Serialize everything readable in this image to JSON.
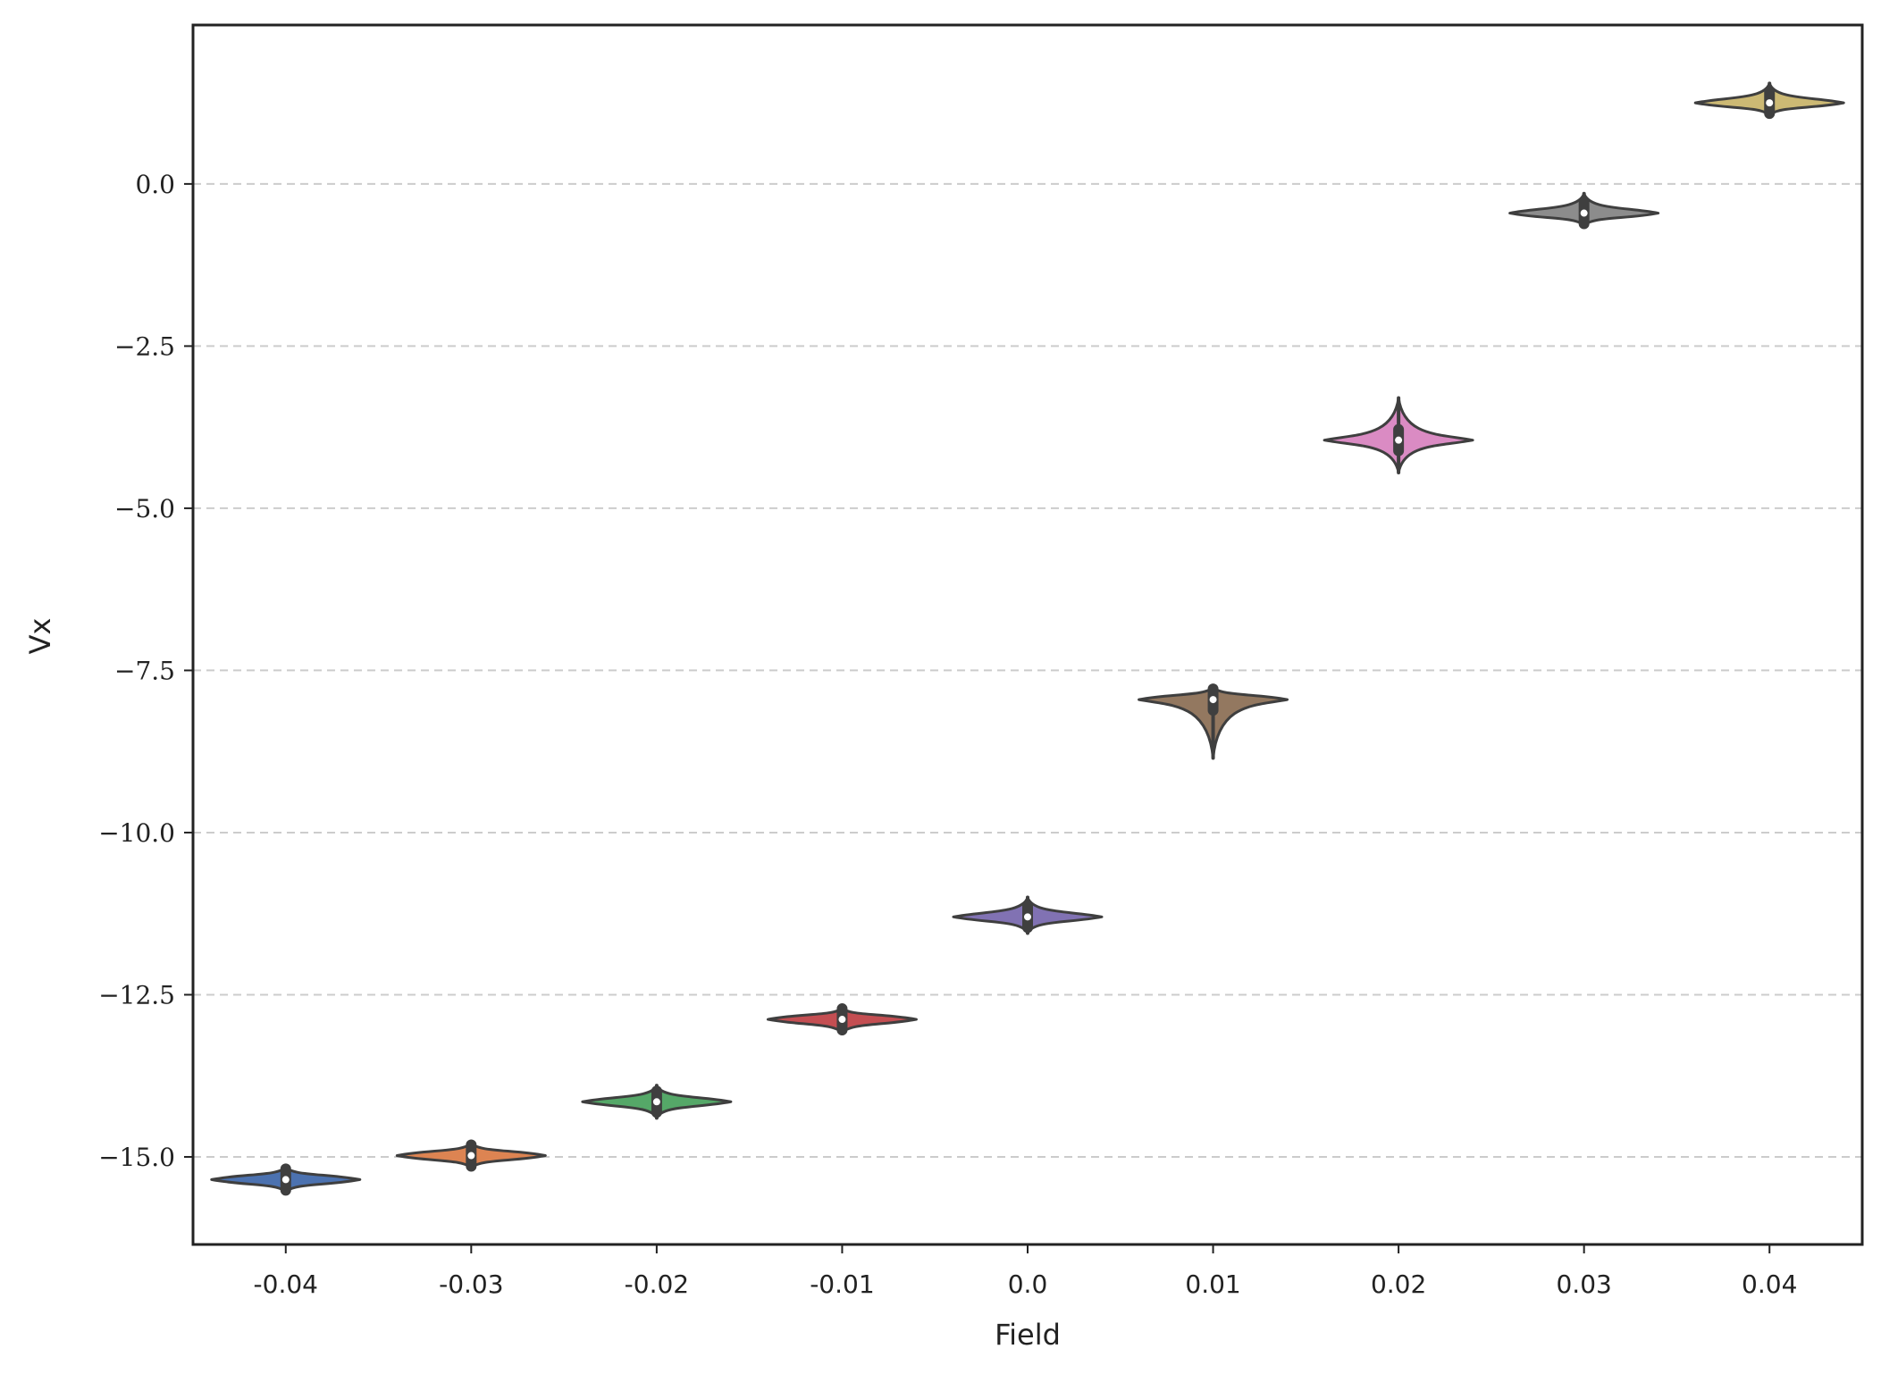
{
  "chart_data": {
    "type": "violin",
    "title": "",
    "xlabel": "Field",
    "ylabel": "Vx",
    "categories": [
      "-0.04",
      "-0.03",
      "-0.02",
      "-0.01",
      "0.0",
      "0.01",
      "0.02",
      "0.03",
      "0.04"
    ],
    "y_ticks": [
      {
        "value": 0.0,
        "label": "0.0"
      },
      {
        "value": -2.5,
        "label": "−2.5"
      },
      {
        "value": -5.0,
        "label": "−5.0"
      },
      {
        "value": -7.5,
        "label": "−7.5"
      },
      {
        "value": -10.0,
        "label": "−10.0"
      },
      {
        "value": -12.5,
        "label": "−12.5"
      },
      {
        "value": -15.0,
        "label": "−15.0"
      }
    ],
    "ylim": [
      -16.35,
      2.45
    ],
    "grid": {
      "y": true,
      "x": false,
      "style": "dashed"
    },
    "series": [
      {
        "category": "-0.04",
        "median": -15.35,
        "min": -15.55,
        "max": -15.15,
        "color": "#4c72b0"
      },
      {
        "category": "-0.03",
        "median": -14.98,
        "min": -15.18,
        "max": -14.78,
        "color": "#dd8452"
      },
      {
        "category": "-0.02",
        "median": -14.15,
        "min": -14.4,
        "max": -13.9,
        "color": "#55a868"
      },
      {
        "category": "-0.01",
        "median": -12.88,
        "min": -13.1,
        "max": -12.7,
        "color": "#c44e52"
      },
      {
        "category": "0.0",
        "median": -11.3,
        "min": -11.55,
        "max": -11.0,
        "color": "#8172b3"
      },
      {
        "category": "0.01",
        "median": -7.95,
        "min": -8.85,
        "max": -7.75,
        "color": "#937860"
      },
      {
        "category": "0.02",
        "median": -3.95,
        "min": -4.45,
        "max": -3.3,
        "color": "#da8bc3"
      },
      {
        "category": "0.03",
        "median": -0.45,
        "min": -0.65,
        "max": -0.15,
        "color": "#8c8c8c"
      },
      {
        "category": "0.04",
        "median": 1.25,
        "min": 1.05,
        "max": 1.55,
        "color": "#ccb974"
      }
    ]
  }
}
